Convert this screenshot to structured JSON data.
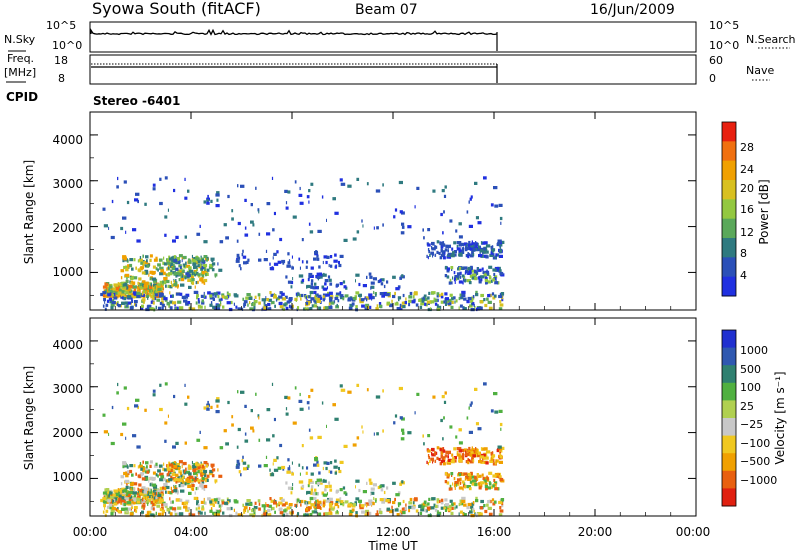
{
  "header": {
    "station": "Syowa South (fitACF)",
    "beam": "Beam 07",
    "date": "16/Jun/2009"
  },
  "status": {
    "nsky_label": "N.Sky",
    "nsky_ticks": [
      "10^5",
      "10^0"
    ],
    "nsearch_label": "N.Search",
    "freq_label": "Freq.",
    "freq_unit": "[MHz]",
    "freq_ticks": [
      "18",
      "8"
    ],
    "nave_label": "Nave",
    "nave_ticks": [
      "60",
      "0"
    ],
    "cpid_label": "CPID",
    "cpid_value": "Stereo -6401"
  },
  "colorbars": {
    "power": {
      "title": "Power [dB]",
      "ticks": [
        "28",
        "24",
        "20",
        "16",
        "12",
        "8",
        "4"
      ],
      "colors": [
        "#2030e0",
        "#2b50b8",
        "#2f7a80",
        "#5aa85a",
        "#93c840",
        "#d8c020",
        "#f0a000",
        "#f07010",
        "#e82010"
      ]
    },
    "velocity": {
      "title": "Velocity [m s⁻¹]",
      "ticks": [
        "1000",
        "500",
        "100",
        "25",
        "−25",
        "−100",
        "−500",
        "−1000"
      ],
      "colors": [
        "#2030d0",
        "#2f58b0",
        "#2f8070",
        "#50b040",
        "#b0d050",
        "#c8c8c8",
        "#f0c820",
        "#f0a000",
        "#e86010",
        "#e02010"
      ]
    }
  },
  "chart_data": [
    {
      "type": "heatmap",
      "name": "power",
      "ylabel": "Slant Range [km]",
      "ylim": [
        180,
        4500
      ],
      "yticks": [
        "1000",
        "2000",
        "3000",
        "4000"
      ],
      "xlim": [
        "00:00",
        "24:00"
      ],
      "data_coverage_hours": [
        0.1,
        16.3
      ],
      "approx_echo_bands": [
        {
          "t_start": 0.5,
          "t_end": 5.0,
          "range_km": [
            500,
            1400
          ],
          "dominant_dB": "8-24"
        },
        {
          "t_start": 4.0,
          "t_end": 16.3,
          "range_km": [
            200,
            700
          ],
          "dominant_dB": "4-12"
        },
        {
          "t_start": 13.5,
          "t_end": 16.3,
          "range_km": [
            800,
            1700
          ],
          "dominant_dB": "4-8"
        }
      ]
    },
    {
      "type": "heatmap",
      "name": "velocity",
      "ylabel": "Slant Range [km]",
      "xlabel": "Time UT",
      "ylim": [
        180,
        4500
      ],
      "yticks": [
        "1000",
        "2000",
        "3000",
        "4000"
      ],
      "xticks": [
        "00:00",
        "04:00",
        "08:00",
        "12:00",
        "16:00",
        "20:00",
        "00:00"
      ],
      "xlim": [
        "00:00",
        "24:00"
      ],
      "data_coverage_hours": [
        0.1,
        16.3
      ],
      "approx_echo_bands": [
        {
          "t_start": 0.5,
          "t_end": 5.0,
          "range_km": [
            500,
            1400
          ],
          "dominant_velocity": "-100 to 100"
        },
        {
          "t_start": 4.0,
          "t_end": 16.3,
          "range_km": [
            200,
            700
          ],
          "dominant_velocity": "-25 to -100"
        },
        {
          "t_start": 13.5,
          "t_end": 16.3,
          "range_km": [
            800,
            1700
          ],
          "dominant_velocity": "-100 to -500"
        }
      ]
    }
  ]
}
